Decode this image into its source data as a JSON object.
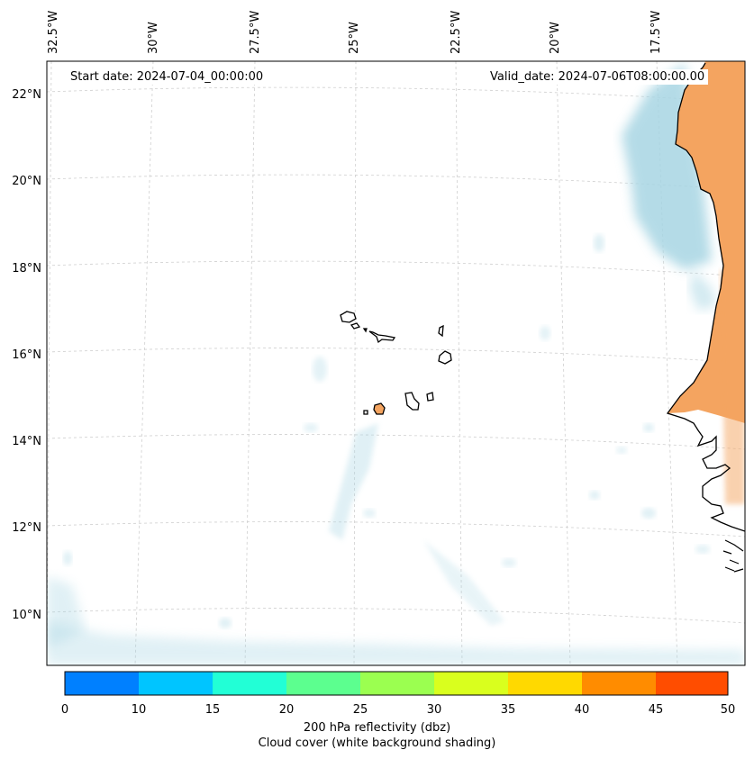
{
  "map": {
    "start_label": "Start date: 2024-07-04_00:00:00",
    "valid_label": "Valid_date: 2024-07-06T08:00:00.00",
    "lon_ticks": [
      "32.5°W",
      "30°W",
      "27.5°W",
      "25°W",
      "22.5°W",
      "20°W",
      "17.5°W"
    ],
    "lat_ticks": [
      "22°N",
      "20°N",
      "18°N",
      "16°N",
      "14°N",
      "12°N",
      "10°N"
    ],
    "colors": {
      "land_fill": "#f4a460",
      "cloud_fill": "#a7d5e3",
      "coast": "#000000",
      "grid": "#cfcfcf"
    }
  },
  "colorbar": {
    "ticks": [
      "0",
      "10",
      "15",
      "20",
      "25",
      "30",
      "35",
      "40",
      "45",
      "50"
    ],
    "colors": [
      "#0080ff",
      "#00c5ff",
      "#22ffd6",
      "#5cff8f",
      "#9bff50",
      "#d9ff1e",
      "#ffd900",
      "#ff8c00",
      "#ff4d00"
    ],
    "title": "200 hPa reflectivity (dbz)",
    "subtitle": "Cloud cover (white background shading)"
  }
}
